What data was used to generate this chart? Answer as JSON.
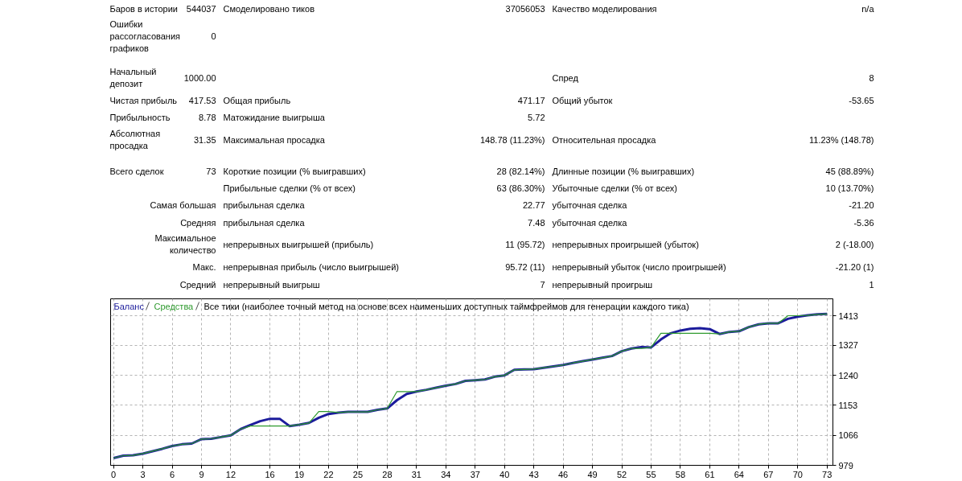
{
  "chart_data": [
    {
      "type": "other",
      "annotations": [
        "Баров в истории",
        "544037",
        "Смоделировано тиков",
        "37056053",
        "Качество моделирования",
        "n/a",
        "Ошибки\nрассогласования\nграфиков",
        "0",
        "Начальный\nдепозит",
        "1000.00",
        "Спред",
        "8",
        "Чистая прибыль",
        "417.53",
        "Общая прибыль",
        "471.17",
        "Общий убыток",
        "-53.65",
        "Прибыльность",
        "8.78",
        "Матожидание выигрыша",
        "5.72",
        "Абсолютная\nпросадка",
        "31.35",
        "Максимальная просадка",
        "148.78 (11.23%)",
        "Относительная просадка",
        "11.23% (148.78)",
        "Всего сделок",
        "73",
        "Короткие позиции (% выигравших)",
        "28 (82.14%)",
        "Длинные позиции (% выигравших)",
        "45 (88.89%)",
        "Прибыльные сделки (% от всех)",
        "63 (86.30%)",
        "Убыточные сделки (% от всех)",
        "10 (13.70%)",
        "Самая большая",
        "прибыльная сделка",
        "22.77",
        "убыточная сделка",
        "-21.20",
        "Средняя",
        "прибыльная сделка",
        "7.48",
        "убыточная сделка",
        "-5.36",
        "Максимальное\nколичество",
        "непрерывных выигрышей (прибыль)",
        "11 (95.72)",
        "непрерывных проигрышей (убыток)",
        "2 (-18.00)",
        "Макс.",
        "непрерывная прибыль (число выигрышей)",
        "95.72 (11)",
        "непрерывный убыток (число проигрышей)",
        "-21.20 (1)",
        "Средний",
        "непрерывный выигрыш",
        "7",
        "непрерывный проигрыш",
        "1"
      ]
    },
    {
      "type": "line",
      "title": "Все тики (наиболее точный метод на основе всех наименьших доступных таймфреймов для генерации каждого тика)",
      "x": [
        0,
        1,
        2,
        3,
        4,
        5,
        6,
        7,
        8,
        9,
        10,
        11,
        12,
        13,
        14,
        15,
        16,
        17,
        18,
        19,
        20,
        21,
        22,
        23,
        24,
        25,
        26,
        27,
        28,
        29,
        30,
        31,
        32,
        33,
        34,
        35,
        36,
        37,
        38,
        39,
        40,
        41,
        42,
        43,
        44,
        45,
        46,
        47,
        48,
        49,
        50,
        51,
        52,
        53,
        54,
        55,
        56,
        57,
        58,
        59,
        60,
        61,
        62,
        63,
        64,
        65,
        66,
        67,
        68,
        69,
        70,
        71,
        72,
        73
      ],
      "series": [
        {
          "name": "Баланс",
          "color": "#1c1c9c",
          "values": [
            1000,
            1007,
            1008,
            1013,
            1020,
            1027,
            1035,
            1040,
            1042,
            1055,
            1056,
            1061,
            1066,
            1084,
            1096,
            1107,
            1114,
            1114,
            1093,
            1097,
            1102,
            1117,
            1128,
            1132,
            1134,
            1134,
            1134,
            1140,
            1144,
            1168,
            1186,
            1193,
            1198,
            1204,
            1210,
            1215,
            1224,
            1226,
            1228,
            1236,
            1240,
            1256,
            1257,
            1258,
            1262,
            1266,
            1270,
            1276,
            1281,
            1286,
            1291,
            1296,
            1310,
            1318,
            1322,
            1321,
            1344,
            1362,
            1370,
            1375,
            1377,
            1374,
            1360,
            1366,
            1368,
            1380,
            1388,
            1391,
            1391,
            1404,
            1410,
            1414,
            1417,
            1418
          ]
        },
        {
          "name": "Средства",
          "color": "#2e9a2e",
          "values": [
            1000,
            1007,
            1008,
            1013,
            1020,
            1027,
            1035,
            1040,
            1042,
            1055,
            1056,
            1061,
            1066,
            1084,
            1093,
            1093,
            1093,
            1093,
            1093,
            1097,
            1102,
            1135,
            1135,
            1132,
            1134,
            1134,
            1134,
            1140,
            1144,
            1193,
            1193,
            1193,
            1198,
            1204,
            1210,
            1215,
            1224,
            1226,
            1228,
            1236,
            1240,
            1256,
            1257,
            1258,
            1262,
            1266,
            1270,
            1276,
            1281,
            1286,
            1291,
            1296,
            1310,
            1318,
            1318,
            1321,
            1362,
            1362,
            1362,
            1362,
            1362,
            1362,
            1360,
            1366,
            1368,
            1380,
            1388,
            1391,
            1391,
            1413,
            1413,
            1414,
            1417,
            1418
          ]
        }
      ],
      "xlim": [
        -0.3,
        73.6
      ],
      "ylim": [
        979,
        1462
      ],
      "xticks": [
        0,
        3,
        6,
        9,
        12,
        16,
        19,
        22,
        25,
        28,
        31,
        34,
        37,
        40,
        43,
        46,
        49,
        52,
        55,
        58,
        61,
        64,
        67,
        70,
        73
      ],
      "yticks": [
        979,
        1066,
        1153,
        1240,
        1327,
        1413
      ],
      "grid": true,
      "legend": "top left"
    }
  ]
}
